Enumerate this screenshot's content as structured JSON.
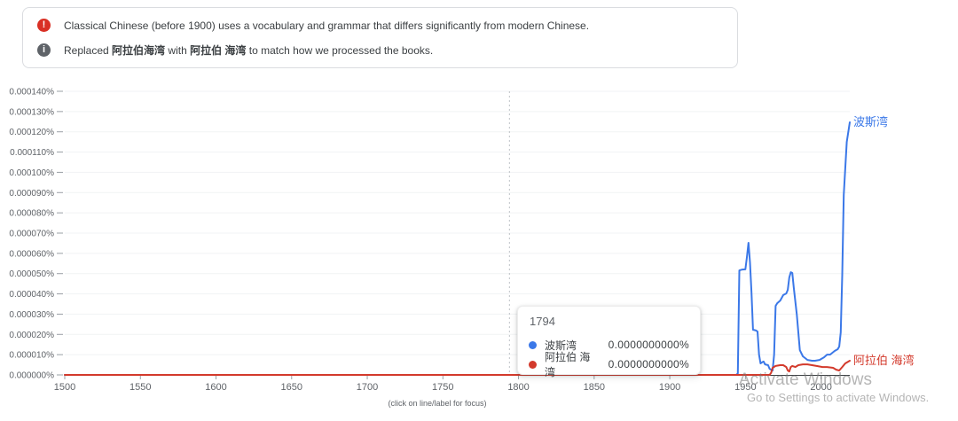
{
  "notices": [
    {
      "icon": "error-icon",
      "icon_glyph": "!",
      "text": "Classical Chinese (before 1900) uses a vocabulary and grammar that differs significantly from modern Chinese."
    },
    {
      "icon": "info-icon",
      "icon_glyph": "i",
      "parts": {
        "prefix": "Replaced ",
        "term1": "阿拉伯海湾",
        "mid": " with ",
        "term2": "阿拉伯 海湾",
        "suffix": " to match how we processed the books."
      }
    }
  ],
  "chart_data": {
    "type": "line",
    "title": "",
    "xlabel": "",
    "ylabel": "",
    "grid": true,
    "xlim": [
      1500,
      2019
    ],
    "ylim": [
      0,
      0.00014
    ],
    "x_ticks": [
      1500,
      1550,
      1600,
      1650,
      1700,
      1750,
      1800,
      1850,
      1900,
      1950,
      2000
    ],
    "y_ticks": [
      {
        "value": 0.00014,
        "label": "0.000140%"
      },
      {
        "value": 0.00013,
        "label": "0.000130%"
      },
      {
        "value": 0.00012,
        "label": "0.000120%"
      },
      {
        "value": 0.00011,
        "label": "0.000110%"
      },
      {
        "value": 0.0001,
        "label": "0.000100%"
      },
      {
        "value": 9e-05,
        "label": "0.000090%"
      },
      {
        "value": 8e-05,
        "label": "0.000080%"
      },
      {
        "value": 7e-05,
        "label": "0.000070%"
      },
      {
        "value": 6e-05,
        "label": "0.000060%"
      },
      {
        "value": 5e-05,
        "label": "0.000050%"
      },
      {
        "value": 4e-05,
        "label": "0.000040%"
      },
      {
        "value": 3e-05,
        "label": "0.000030%"
      },
      {
        "value": 2e-05,
        "label": "0.000020%"
      },
      {
        "value": 1e-05,
        "label": "0.000010%"
      },
      {
        "value": 0.0,
        "label": "0.000000%"
      }
    ],
    "focus_year": 1794,
    "caption": "(click on line/label for focus)",
    "series": [
      {
        "name": "波斯湾",
        "slug": "persian-gulf",
        "color": "#3b78e8",
        "points": [
          [
            1500,
            0
          ],
          [
            1944,
            0
          ],
          [
            1945,
            8e-07
          ],
          [
            1946,
            5.16e-05
          ],
          [
            1948,
            5.2e-05
          ],
          [
            1950,
            5.21e-05
          ],
          [
            1951,
            5.8e-05
          ],
          [
            1952,
            6.52e-05
          ],
          [
            1953,
            5.55e-05
          ],
          [
            1954,
            4.07e-05
          ],
          [
            1955,
            2.23e-05
          ],
          [
            1957,
            2.19e-05
          ],
          [
            1958,
            2.14e-05
          ],
          [
            1959,
            1e-05
          ],
          [
            1960,
            5.7e-06
          ],
          [
            1961,
            6.2e-06
          ],
          [
            1962,
            6.6e-06
          ],
          [
            1963,
            5.2e-06
          ],
          [
            1965,
            4.8e-06
          ],
          [
            1966,
            3e-06
          ],
          [
            1967,
            2.6e-06
          ],
          [
            1968,
            2.2e-06
          ],
          [
            1969,
            1e-05
          ],
          [
            1970,
            3.41e-05
          ],
          [
            1971,
            3.54e-05
          ],
          [
            1973,
            3.67e-05
          ],
          [
            1975,
            3.94e-05
          ],
          [
            1977,
            4.02e-05
          ],
          [
            1978,
            4.2e-05
          ],
          [
            1979,
            4.81e-05
          ],
          [
            1980,
            5.07e-05
          ],
          [
            1981,
            5.03e-05
          ],
          [
            1982,
            4.29e-05
          ],
          [
            1984,
            2.97e-05
          ],
          [
            1985,
            2.1e-05
          ],
          [
            1986,
            1.22e-05
          ],
          [
            1988,
            9.2e-06
          ],
          [
            1991,
            7.4e-06
          ],
          [
            1994,
            7e-06
          ],
          [
            1996,
            7e-06
          ],
          [
            1999,
            7.4e-06
          ],
          [
            2002,
            8.7e-06
          ],
          [
            2004,
            1e-05
          ],
          [
            2006,
            1e-05
          ],
          [
            2009,
            1.18e-05
          ],
          [
            2011,
            1.27e-05
          ],
          [
            2012,
            1.4e-05
          ],
          [
            2013,
            2.1e-05
          ],
          [
            2014,
            4.94e-05
          ],
          [
            2015,
            8.88e-05
          ],
          [
            2017,
            0.000115
          ],
          [
            2019,
            0.0001247
          ]
        ]
      },
      {
        "name": "阿拉伯 海湾",
        "slug": "arabian-gulf",
        "color": "#d33a2c",
        "points": [
          [
            1500,
            0
          ],
          [
            1966,
            0
          ],
          [
            1967,
            1e-06
          ],
          [
            1968,
            3.5e-06
          ],
          [
            1970,
            4.4e-06
          ],
          [
            1973,
            4.8e-06
          ],
          [
            1975,
            4.8e-06
          ],
          [
            1977,
            3.9e-06
          ],
          [
            1978,
            2.2e-06
          ],
          [
            1979,
            1.7e-06
          ],
          [
            1980,
            3.9e-06
          ],
          [
            1981,
            4.4e-06
          ],
          [
            1983,
            3.9e-06
          ],
          [
            1985,
            4.8e-06
          ],
          [
            1988,
            5.2e-06
          ],
          [
            1991,
            5.2e-06
          ],
          [
            1994,
            4.8e-06
          ],
          [
            1997,
            4.4e-06
          ],
          [
            2001,
            3.9e-06
          ],
          [
            2004,
            3.9e-06
          ],
          [
            2008,
            3.5e-06
          ],
          [
            2010,
            2.6e-06
          ],
          [
            2012,
            2.2e-06
          ],
          [
            2014,
            3.9e-06
          ],
          [
            2016,
            5.7e-06
          ],
          [
            2019,
            7e-06
          ]
        ]
      }
    ]
  },
  "tooltip": {
    "year": "1794",
    "rows": [
      {
        "label": "波斯湾",
        "value": "0.0000000000%",
        "color": "#3b78e8"
      },
      {
        "label": "阿拉伯 海湾",
        "value": "0.0000000000%",
        "color": "#d33a2c"
      }
    ]
  },
  "watermark": {
    "line1": "Activate Windows",
    "line2": "Go to Settings to activate Windows."
  }
}
